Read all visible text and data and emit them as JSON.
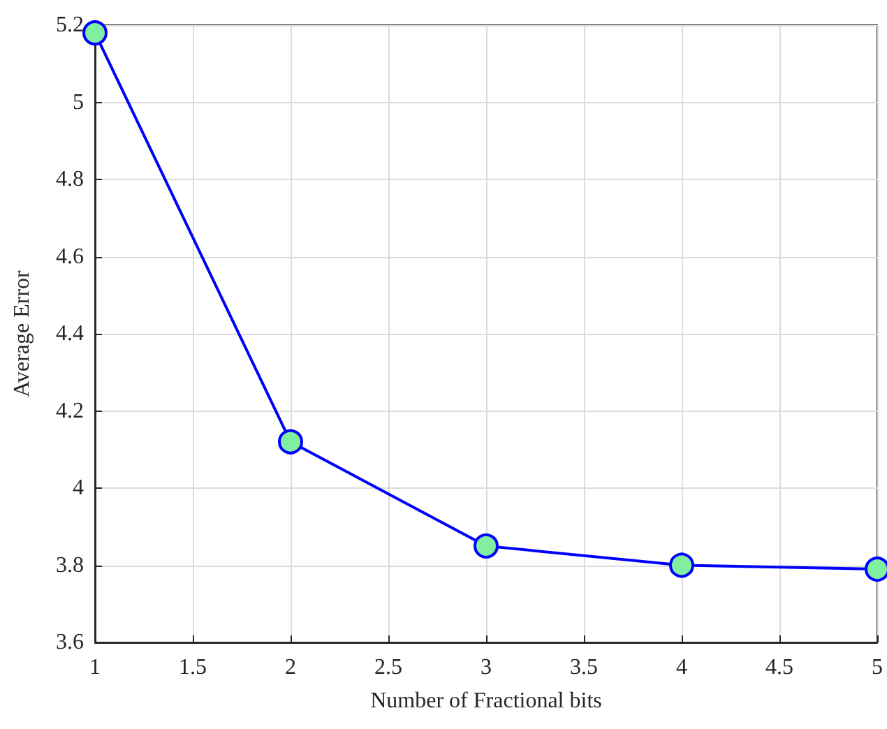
{
  "chart_data": {
    "type": "line",
    "xlabel": "Number of Fractional bits",
    "ylabel": "Average Error",
    "x": [
      1,
      2,
      3,
      4,
      5
    ],
    "series": [
      {
        "color": "#0000ff",
        "values": [
          5.18,
          4.12,
          3.85,
          3.8,
          3.79
        ]
      }
    ],
    "xlim": [
      1,
      5
    ],
    "xticks": [
      1,
      1.5,
      2,
      2.5,
      3,
      3.5,
      4,
      4.5,
      5
    ],
    "ylim": [
      3.6,
      5.2
    ],
    "yticks": [
      3.6,
      3.8,
      4,
      4.2,
      4.4,
      4.6,
      4.8,
      5,
      5.2
    ],
    "grid": true,
    "marker": "circle",
    "line_style": "solid"
  }
}
